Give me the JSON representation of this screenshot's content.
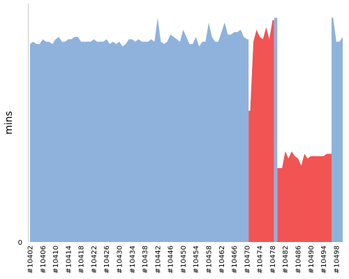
{
  "chart_data": {
    "type": "area",
    "title": "",
    "xlabel": "",
    "ylabel": "mins",
    "y_tick_labels": [
      "0"
    ],
    "ylim": [
      0,
      100
    ],
    "grid": false,
    "legend": "none",
    "colors": {
      "success": "#8fb2dc",
      "failure": "#f25454"
    },
    "x_tick_labels": [
      "#10402",
      "#10406",
      "#10410",
      "#10414",
      "#10418",
      "#10422",
      "#10426",
      "#10430",
      "#10434",
      "#10438",
      "#10442",
      "#10446",
      "#10450",
      "#10454",
      "#10458",
      "#10462",
      "#10466",
      "#10470",
      "#10474",
      "#10478",
      "#10482",
      "#10486",
      "#10490",
      "#10494",
      "#10498"
    ],
    "x": [
      10402,
      10403,
      10404,
      10405,
      10406,
      10407,
      10408,
      10409,
      10410,
      10411,
      10412,
      10413,
      10414,
      10415,
      10416,
      10417,
      10418,
      10419,
      10420,
      10421,
      10422,
      10423,
      10424,
      10425,
      10426,
      10427,
      10428,
      10429,
      10430,
      10431,
      10432,
      10433,
      10434,
      10435,
      10436,
      10437,
      10438,
      10439,
      10440,
      10441,
      10442,
      10443,
      10444,
      10445,
      10446,
      10447,
      10448,
      10449,
      10450,
      10451,
      10452,
      10453,
      10454,
      10455,
      10456,
      10457,
      10458,
      10459,
      10460,
      10461,
      10462,
      10463,
      10464,
      10465,
      10466,
      10467,
      10468,
      10469,
      10470,
      10471,
      10472,
      10473,
      10474,
      10475,
      10476,
      10477,
      10478,
      10479,
      10480,
      10481,
      10482,
      10483,
      10484,
      10485,
      10486,
      10487,
      10488,
      10489,
      10490,
      10491,
      10492,
      10493,
      10494,
      10495,
      10496,
      10497,
      10498,
      10499,
      10500
    ],
    "values": [
      83,
      84,
      83,
      83,
      85,
      84,
      84,
      83,
      85,
      86,
      84,
      84,
      85,
      85,
      86,
      86,
      84,
      84,
      84,
      84,
      85,
      84,
      84,
      84,
      85,
      83,
      84,
      83,
      84,
      82,
      83,
      85,
      85,
      84,
      85,
      84,
      84,
      84,
      85,
      84,
      94,
      84,
      83,
      84,
      87,
      86,
      85,
      84,
      89,
      86,
      83,
      83,
      86,
      82,
      84,
      84,
      92,
      86,
      84,
      84,
      88,
      92,
      87,
      87,
      88,
      88,
      89,
      86,
      85,
      55,
      84,
      89,
      86,
      85,
      90,
      85,
      93,
      94,
      31,
      31,
      38,
      35,
      38,
      36,
      35,
      32,
      37,
      35,
      36,
      36,
      36,
      36,
      36,
      37,
      37,
      94,
      84,
      84,
      86
    ],
    "status": [
      "s",
      "s",
      "s",
      "s",
      "s",
      "s",
      "s",
      "s",
      "s",
      "s",
      "s",
      "s",
      "s",
      "s",
      "s",
      "s",
      "s",
      "s",
      "s",
      "s",
      "s",
      "s",
      "s",
      "s",
      "s",
      "s",
      "s",
      "s",
      "s",
      "s",
      "s",
      "s",
      "s",
      "s",
      "s",
      "s",
      "s",
      "s",
      "s",
      "s",
      "s",
      "s",
      "s",
      "s",
      "s",
      "s",
      "s",
      "s",
      "s",
      "s",
      "s",
      "s",
      "s",
      "s",
      "s",
      "s",
      "s",
      "s",
      "s",
      "s",
      "s",
      "s",
      "s",
      "s",
      "s",
      "s",
      "s",
      "s",
      "s",
      "f",
      "f",
      "f",
      "f",
      "f",
      "f",
      "f",
      "f",
      "s",
      "f",
      "f",
      "f",
      "f",
      "f",
      "f",
      "f",
      "f",
      "f",
      "f",
      "f",
      "f",
      "f",
      "f",
      "f",
      "f",
      "f",
      "s",
      "s",
      "s",
      "s"
    ]
  }
}
